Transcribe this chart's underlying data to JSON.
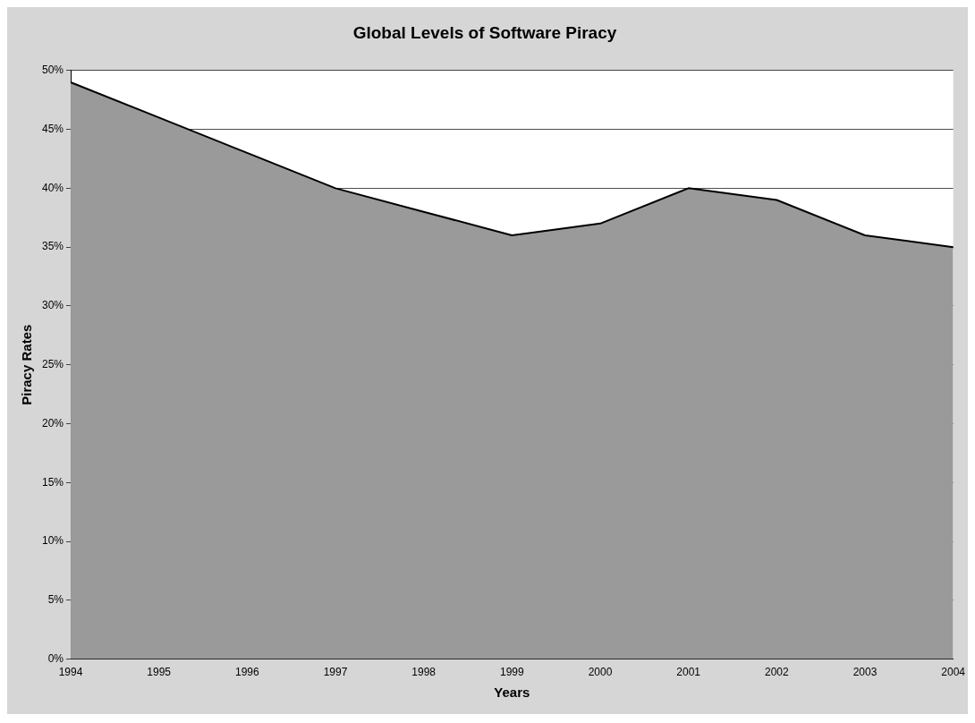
{
  "chart_data": {
    "type": "area",
    "title": "Global Levels of Software Piracy",
    "xlabel": "Years",
    "ylabel": "Piracy Rates",
    "categories": [
      "1994",
      "1995",
      "1996",
      "1997",
      "1998",
      "1999",
      "2000",
      "2001",
      "2002",
      "2003",
      "2004"
    ],
    "series": [
      {
        "color": "#9a9a9a",
        "values": [
          49,
          46,
          43,
          40,
          38,
          36,
          37,
          40,
          39,
          36,
          35
        ]
      }
    ],
    "ylim": [
      0,
      50
    ],
    "yticks": [
      {
        "value": 0,
        "label": "0%"
      },
      {
        "value": 5,
        "label": "5%"
      },
      {
        "value": 10,
        "label": "10%"
      },
      {
        "value": 15,
        "label": "15%"
      },
      {
        "value": 20,
        "label": "20%"
      },
      {
        "value": 25,
        "label": "25%"
      },
      {
        "value": 30,
        "label": "30%"
      },
      {
        "value": 35,
        "label": "35%"
      },
      {
        "value": 40,
        "label": "40%"
      },
      {
        "value": 45,
        "label": "45%"
      },
      {
        "value": 50,
        "label": "50%"
      }
    ],
    "grid": "y",
    "legend": false
  }
}
